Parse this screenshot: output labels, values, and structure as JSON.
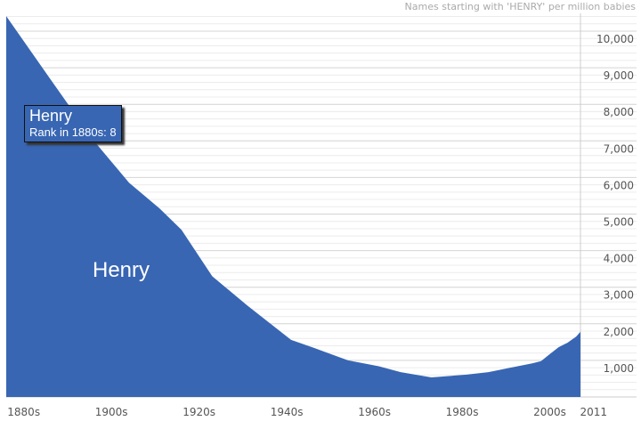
{
  "chart_data": {
    "type": "area",
    "title": "Names starting with 'HENRY' per million babies",
    "series": [
      {
        "name": "Henry",
        "color": "#3866b3",
        "x": [
          1880,
          1890,
          1900,
          1908,
          1915,
          1920,
          1927,
          1935,
          1945,
          1950,
          1958,
          1965,
          1970,
          1977,
          1985,
          1990,
          1995,
          2000,
          2002,
          2004,
          2006,
          2008,
          2010,
          2011
        ],
        "y": [
          10410,
          8700,
          7000,
          5860,
          5150,
          4570,
          3300,
          2500,
          1560,
          1350,
          1000,
          840,
          680,
          535,
          610,
          680,
          800,
          920,
          980,
          1170,
          1360,
          1480,
          1650,
          1780
        ]
      }
    ],
    "xlim": [
      1880,
      2011
    ],
    "ylim": [
      0,
      10000
    ],
    "x_ticks": [
      {
        "v": 1884,
        "label": "1880s"
      },
      {
        "v": 1904,
        "label": "1900s"
      },
      {
        "v": 1924,
        "label": "1920s"
      },
      {
        "v": 1944,
        "label": "1940s"
      },
      {
        "v": 1964,
        "label": "1960s"
      },
      {
        "v": 1984,
        "label": "1980s"
      },
      {
        "v": 2004,
        "label": "2000s"
      },
      {
        "v": 2014,
        "label": "2011"
      }
    ],
    "y_ticks": [
      {
        "v": 1000,
        "label": "1,000"
      },
      {
        "v": 2000,
        "label": "2,000"
      },
      {
        "v": 3000,
        "label": "3,000"
      },
      {
        "v": 4000,
        "label": "4,000"
      },
      {
        "v": 5000,
        "label": "5,000"
      },
      {
        "v": 6000,
        "label": "6,000"
      },
      {
        "v": 7000,
        "label": "7,000"
      },
      {
        "v": 8000,
        "label": "8,000"
      },
      {
        "v": 9000,
        "label": "9,000"
      },
      {
        "v": 10000,
        "label": "10,000"
      }
    ],
    "area_label": "Henry",
    "tooltip": {
      "name": "Henry",
      "rank": "Rank in 1880s: 8"
    }
  }
}
